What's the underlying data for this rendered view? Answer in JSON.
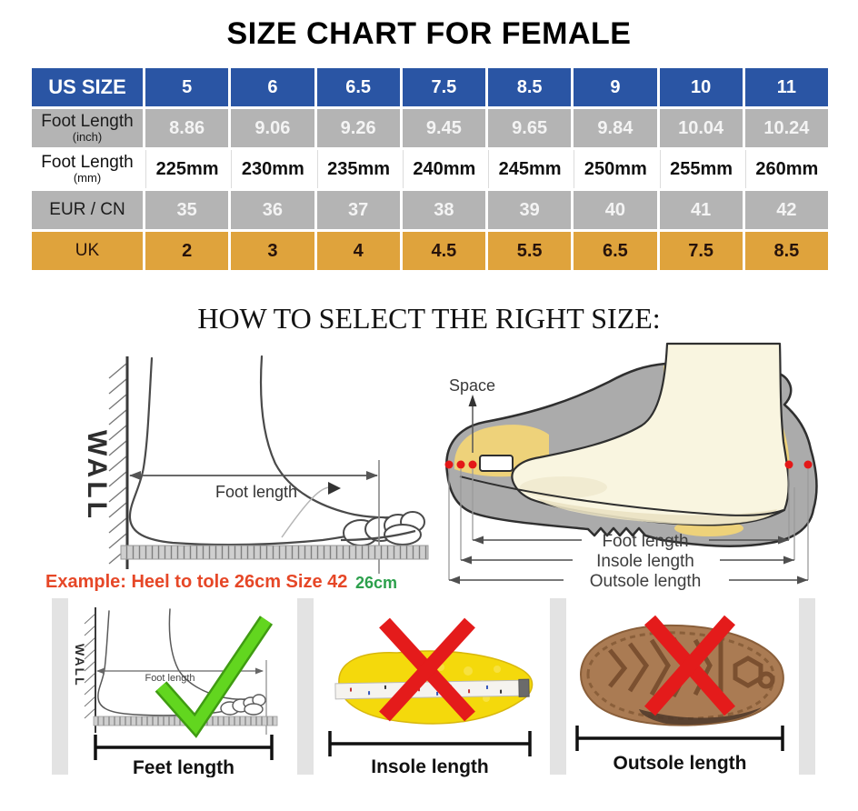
{
  "title": "SIZE CHART FOR FEMALE",
  "size_table": {
    "rows": [
      {
        "label": "US SIZE",
        "sub": "",
        "style": "blue",
        "values": [
          "5",
          "6",
          "6.5",
          "7.5",
          "8.5",
          "9",
          "10",
          "11"
        ]
      },
      {
        "label": "Foot Length",
        "sub": "(inch)",
        "style": "gray",
        "values": [
          "8.86",
          "9.06",
          "9.26",
          "9.45",
          "9.65",
          "9.84",
          "10.04",
          "10.24"
        ]
      },
      {
        "label": "Foot Length",
        "sub": "(mm)",
        "style": "white",
        "values": [
          "225mm",
          "230mm",
          "235mm",
          "240mm",
          "245mm",
          "250mm",
          "255mm",
          "260mm"
        ]
      },
      {
        "label": "EUR / CN",
        "sub": "",
        "style": "gray",
        "values": [
          "35",
          "36",
          "37",
          "38",
          "39",
          "40",
          "41",
          "42"
        ]
      },
      {
        "label": "UK",
        "sub": "",
        "style": "gold",
        "values": [
          "2",
          "3",
          "4",
          "4.5",
          "5.5",
          "6.5",
          "7.5",
          "8.5"
        ]
      }
    ]
  },
  "section_heading": "HOW TO SELECT THE RIGHT SIZE:",
  "measure_diagram": {
    "wall_label": "WALL",
    "foot_length_label": "Foot length",
    "example_text": "Example: Heel to tole 26cm Size 42",
    "example_measurement": "26cm"
  },
  "shoe_diagram": {
    "space_label": "Space",
    "foot_length_label": "Foot length",
    "insole_length_label": "Insole length",
    "outsole_length_label": "Outsole length"
  },
  "bottom_panels": {
    "feet": {
      "label": "Feet length",
      "mark": "check",
      "wall_label": "WALL",
      "arrow_label": "Foot length"
    },
    "insole": {
      "label": "Insole length",
      "mark": "cross"
    },
    "outsole": {
      "label": "Outsole length",
      "mark": "cross"
    }
  },
  "colors": {
    "header_blue": "#2a55a4",
    "row_gray": "#b4b4b4",
    "row_gold": "#dfa33c",
    "example_red": "#e64727",
    "measurement_green": "#2ca04c",
    "check_green": "#62d61f",
    "cross_red": "#e41b1b",
    "shoe_gray": "#ababab",
    "insole_yellow": "#eed27a",
    "foot_cream": "#f9f5e0",
    "insole_bright_yellow": "#f4d90c",
    "outsole_brown": "#aa7b53"
  }
}
